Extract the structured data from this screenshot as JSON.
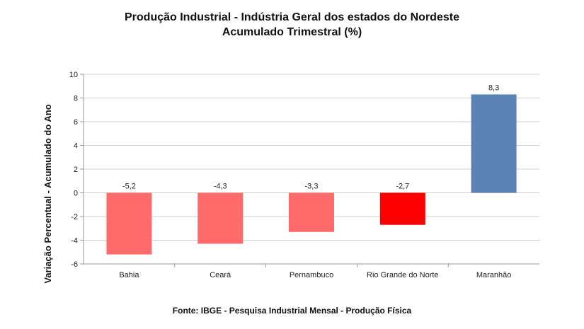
{
  "chart_data": {
    "type": "bar",
    "title_lines": [
      "Produção Industrial - Indústria Geral dos estados do Nordeste",
      "Acumulado Trimestral (%)"
    ],
    "ylabel": "Variação Percentual - Acumulado do Ano",
    "source": "Fonte: IBGE - Pesquisa Industrial Mensal - Produção Física",
    "categories": [
      "Bahia",
      "Ceará",
      "Pernambuco",
      "Rio Grande do Norte",
      "Maranhão"
    ],
    "values": [
      -5.2,
      -4.3,
      -3.3,
      -2.7,
      8.3
    ],
    "value_labels": [
      "-5,2",
      "-4,3",
      "-3,3",
      "-2,7",
      "8,3"
    ],
    "bar_colors": [
      "#ff6b6b",
      "#ff6b6b",
      "#ff6b6b",
      "#ff0000",
      "#5b82b4"
    ],
    "ylim": [
      -6,
      10
    ],
    "yticks": [
      10,
      8,
      6,
      4,
      2,
      0,
      -2,
      -4,
      -6
    ],
    "ytick_labels": [
      "10",
      "8",
      "6",
      "4",
      "2",
      "0",
      "-2",
      "-4",
      "-6"
    ],
    "grid": true,
    "legend": "none"
  }
}
